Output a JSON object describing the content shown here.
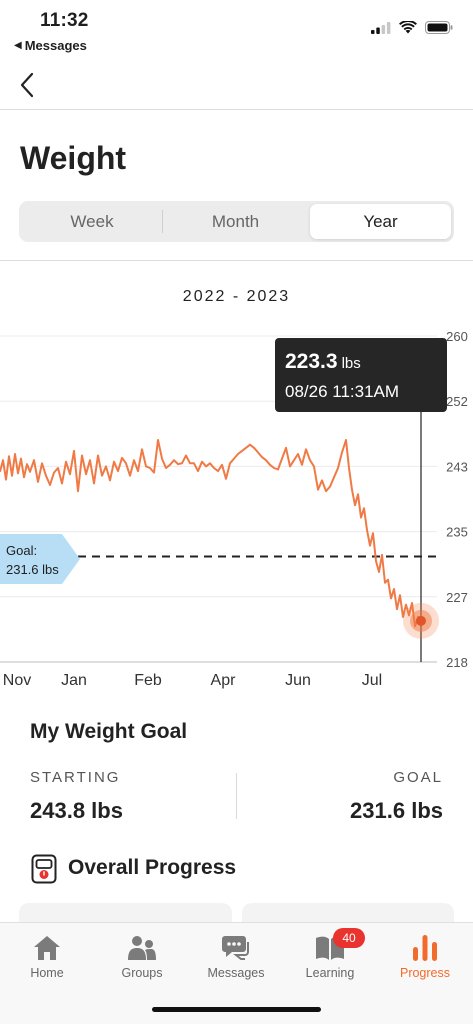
{
  "status_bar": {
    "time": "11:32",
    "back_app": "Messages",
    "icons": [
      "signal-icon",
      "wifi-icon",
      "battery-icon"
    ]
  },
  "page": {
    "title": "Weight",
    "segments": [
      "Week",
      "Month",
      "Year"
    ],
    "active_segment": "Year",
    "range_label": "2022 - 2023"
  },
  "tooltip": {
    "value": "223.3",
    "unit": "lbs",
    "datetime": "08/26 11:31AM"
  },
  "goal_tag": {
    "line1": "Goal:",
    "line2": "231.6 lbs"
  },
  "chart_data": {
    "type": "line",
    "x_ticks": [
      "Nov",
      "Jan",
      "Feb",
      "Apr",
      "Jun",
      "Jul"
    ],
    "y_ticks": [
      260,
      252,
      243,
      235,
      227,
      218
    ],
    "ylim": [
      218,
      260
    ],
    "goal_value": 231.6,
    "selected": {
      "value": 223.3,
      "label": "08/26 11:31AM"
    },
    "series": [
      {
        "color": "#f07a45",
        "x": [
          0,
          3,
          6,
          9,
          12,
          15,
          18,
          21,
          24,
          27,
          30,
          34,
          38,
          42,
          46,
          50,
          54,
          58,
          62,
          66,
          70,
          74,
          78,
          82,
          86,
          90,
          94,
          98,
          102,
          106,
          110,
          114,
          118,
          122,
          126,
          130,
          134,
          138,
          142,
          146,
          150,
          154,
          158,
          162,
          166,
          170,
          174,
          178,
          182,
          186,
          190,
          194,
          198,
          202,
          206,
          210,
          214,
          218,
          222,
          226,
          230,
          234,
          238,
          242,
          246,
          250,
          254,
          258,
          262,
          266,
          270,
          274,
          278,
          282,
          286,
          290,
          294,
          298,
          302,
          306,
          310,
          314,
          318,
          322,
          326,
          330,
          334,
          338,
          342,
          346,
          349,
          352,
          355,
          358,
          361,
          364,
          367,
          370,
          373,
          376,
          379,
          382,
          385,
          388,
          391,
          394,
          397,
          400,
          403,
          406,
          409,
          412,
          415,
          418,
          421
        ],
        "values": [
          242.5,
          244.0,
          241.5,
          244.5,
          242.0,
          244.8,
          242.3,
          244.2,
          241.8,
          243.5,
          242.5,
          244.0,
          241.2,
          243.6,
          242.0,
          240.8,
          242.4,
          243.0,
          241.0,
          243.8,
          242.2,
          245.2,
          240.0,
          244.6,
          242.2,
          244.0,
          241.0,
          244.6,
          242.0,
          243.2,
          241.4,
          243.8,
          242.6,
          244.3,
          243.6,
          242.0,
          244.0,
          242.6,
          245.4,
          243.2,
          243.0,
          242.4,
          246.6,
          244.2,
          243.0,
          243.4,
          244.0,
          243.5,
          243.6,
          244.6,
          243.6,
          243.6,
          242.6,
          243.8,
          243.2,
          243.6,
          243.0,
          242.6,
          243.4,
          241.6,
          243.6,
          244.2,
          244.8,
          245.2,
          245.6,
          246.0,
          245.6,
          245.0,
          244.4,
          244.0,
          243.4,
          243.0,
          242.8,
          244.2,
          245.6,
          243.2,
          244.0,
          244.8,
          243.4,
          245.4,
          244.0,
          243.2,
          240.2,
          241.4,
          240.0,
          240.6,
          241.8,
          243.0,
          245.0,
          246.6,
          243.0,
          240.2,
          238.2,
          239.6,
          236.6,
          237.8,
          235.0,
          233.0,
          234.6,
          231.0,
          229.6,
          231.8,
          228.2,
          228.6,
          226.2,
          227.4,
          224.8,
          226.6,
          223.8,
          225.4,
          224.0,
          225.6,
          222.6,
          223.8,
          223.3
        ]
      }
    ]
  },
  "goal_section": {
    "title": "My Weight Goal",
    "starting_label": "STARTING",
    "starting_value": "243.8 lbs",
    "goal_label": "GOAL",
    "goal_value": "231.6 lbs"
  },
  "overall_progress": {
    "title": "Overall Progress"
  },
  "tabbar": {
    "tabs": [
      {
        "label": "Home",
        "icon": "home-icon"
      },
      {
        "label": "Groups",
        "icon": "groups-icon"
      },
      {
        "label": "Messages",
        "icon": "messages-icon"
      },
      {
        "label": "Learning",
        "icon": "book-icon",
        "badge": "40"
      },
      {
        "label": "Progress",
        "icon": "progress-bars-icon"
      }
    ],
    "active": "Progress",
    "accent_color": "#f26b2c",
    "badge_color": "#e8332e"
  }
}
